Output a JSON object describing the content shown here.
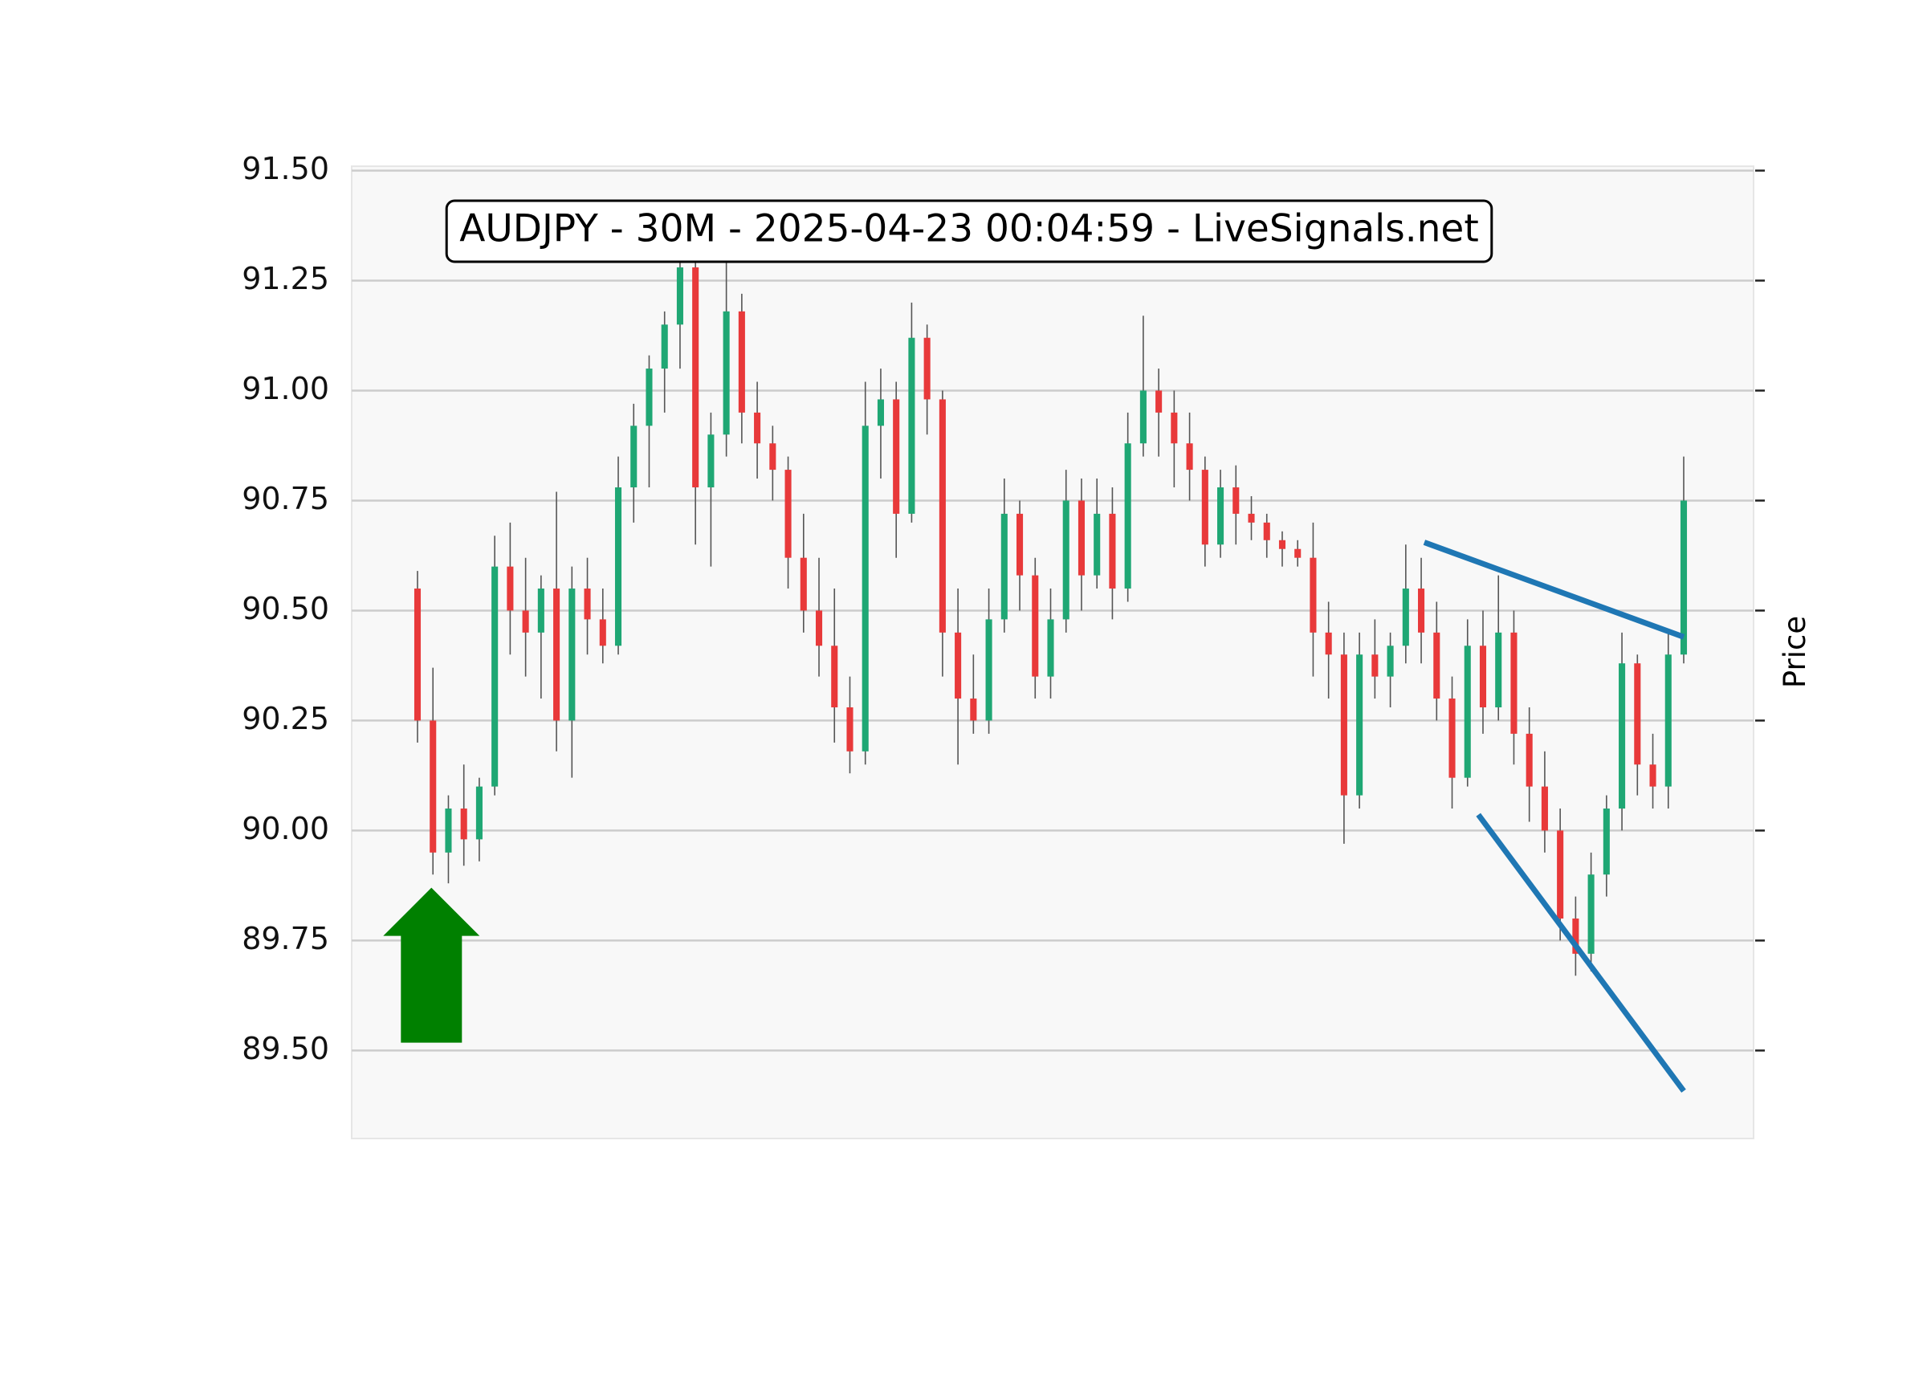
{
  "chart_data": {
    "type": "candlestick",
    "title": "AUDJPY - 30M - 2025-04-23 00:04:59 - LiveSignals.net",
    "y_label": "Price",
    "ylim": [
      89.3,
      91.51
    ],
    "yticks": [
      {
        "value": 89.5,
        "label": "89.50"
      },
      {
        "value": 89.75,
        "label": "89.75"
      },
      {
        "value": 90.0,
        "label": "90.00"
      },
      {
        "value": 90.25,
        "label": "90.25"
      },
      {
        "value": 90.5,
        "label": "90.50"
      },
      {
        "value": 90.75,
        "label": "90.75"
      },
      {
        "value": 91.0,
        "label": "91.00"
      },
      {
        "value": 91.25,
        "label": "91.25"
      },
      {
        "value": 91.5,
        "label": "91.50"
      }
    ],
    "grid": true,
    "up_color": "#1fa774",
    "down_color": "#e8393a",
    "wick_color": "#555555",
    "candles": {
      "open": [
        90.55,
        90.25,
        89.95,
        90.05,
        89.98,
        90.1,
        90.6,
        90.5,
        90.45,
        90.55,
        90.25,
        90.55,
        90.48,
        90.42,
        90.78,
        90.92,
        91.05,
        91.15,
        91.28,
        90.78,
        90.9,
        91.18,
        90.95,
        90.88,
        90.82,
        90.62,
        90.5,
        90.42,
        90.28,
        90.18,
        90.92,
        90.98,
        90.72,
        91.12,
        90.98,
        90.45,
        90.3,
        90.25,
        90.48,
        90.72,
        90.58,
        90.35,
        90.48,
        90.75,
        90.58,
        90.72,
        90.55,
        90.88,
        91.0,
        90.95,
        90.88,
        90.82,
        90.65,
        90.78,
        90.72,
        90.7,
        90.66,
        90.64,
        90.62,
        90.45,
        90.4,
        90.08,
        90.4,
        90.35,
        90.42,
        90.55,
        90.45,
        90.3,
        90.12,
        90.42,
        90.28,
        90.45,
        90.22,
        90.1,
        90.0,
        89.8,
        89.72,
        89.9,
        90.05,
        90.38,
        90.15,
        90.1,
        90.4
      ],
      "high": [
        90.59,
        90.37,
        90.08,
        90.15,
        90.12,
        90.67,
        90.7,
        90.62,
        90.58,
        90.77,
        90.6,
        90.62,
        90.55,
        90.85,
        90.97,
        91.08,
        91.18,
        91.32,
        91.3,
        90.95,
        91.3,
        91.22,
        91.02,
        90.92,
        90.85,
        90.72,
        90.62,
        90.55,
        90.35,
        91.02,
        91.05,
        91.02,
        91.2,
        91.15,
        91.0,
        90.55,
        90.4,
        90.55,
        90.8,
        90.75,
        90.62,
        90.55,
        90.82,
        90.8,
        90.8,
        90.78,
        90.95,
        91.17,
        91.05,
        91.0,
        90.95,
        90.85,
        90.82,
        90.83,
        90.76,
        90.72,
        90.68,
        90.66,
        90.7,
        90.52,
        90.45,
        90.45,
        90.48,
        90.45,
        90.65,
        90.62,
        90.52,
        90.35,
        90.48,
        90.5,
        90.58,
        90.5,
        90.28,
        90.18,
        90.05,
        89.85,
        89.95,
        90.08,
        90.45,
        90.4,
        90.22,
        90.45,
        90.85
      ],
      "low": [
        90.2,
        89.9,
        89.88,
        89.92,
        89.93,
        90.08,
        90.4,
        90.35,
        90.3,
        90.18,
        90.12,
        90.4,
        90.38,
        90.4,
        90.7,
        90.78,
        90.95,
        91.05,
        90.65,
        90.6,
        90.85,
        90.88,
        90.8,
        90.75,
        90.55,
        90.45,
        90.35,
        90.2,
        90.13,
        90.15,
        90.8,
        90.62,
        90.7,
        90.9,
        90.35,
        90.15,
        90.22,
        90.22,
        90.45,
        90.5,
        90.3,
        90.3,
        90.45,
        90.5,
        90.55,
        90.48,
        90.52,
        90.85,
        90.85,
        90.78,
        90.75,
        90.6,
        90.62,
        90.65,
        90.66,
        90.62,
        90.6,
        90.6,
        90.35,
        90.3,
        89.97,
        90.05,
        90.3,
        90.28,
        90.38,
        90.38,
        90.25,
        90.05,
        90.1,
        90.22,
        90.25,
        90.15,
        90.02,
        89.95,
        89.75,
        89.67,
        89.68,
        89.85,
        90.0,
        90.08,
        90.05,
        90.05,
        90.38
      ],
      "close": [
        90.25,
        89.95,
        90.05,
        89.98,
        90.1,
        90.6,
        90.5,
        90.45,
        90.55,
        90.25,
        90.55,
        90.48,
        90.42,
        90.78,
        90.92,
        91.05,
        91.15,
        91.28,
        90.78,
        90.9,
        91.18,
        90.95,
        90.88,
        90.82,
        90.62,
        90.5,
        90.42,
        90.28,
        90.18,
        90.92,
        90.98,
        90.72,
        91.12,
        90.98,
        90.45,
        90.3,
        90.25,
        90.48,
        90.72,
        90.58,
        90.35,
        90.48,
        90.75,
        90.58,
        90.72,
        90.55,
        90.88,
        91.0,
        90.95,
        90.88,
        90.82,
        90.65,
        90.78,
        90.72,
        90.7,
        90.66,
        90.64,
        90.62,
        90.45,
        90.4,
        90.08,
        90.4,
        90.35,
        90.42,
        90.55,
        90.45,
        90.3,
        90.12,
        90.42,
        90.28,
        90.45,
        90.22,
        90.1,
        90.0,
        89.8,
        89.72,
        89.9,
        90.05,
        90.38,
        90.15,
        90.1,
        90.4,
        90.75
      ]
    },
    "trendlines": [
      {
        "color": "#1f77b4",
        "x": [
          65.2,
          82
        ],
        "y": [
          90.655,
          90.44
        ]
      },
      {
        "color": "#1f77b4",
        "x": [
          68.7,
          82
        ],
        "y": [
          90.036,
          89.408
        ]
      }
    ],
    "signal": {
      "direction": "up",
      "color": "#008000",
      "x": 0.9,
      "y": 89.87
    }
  }
}
